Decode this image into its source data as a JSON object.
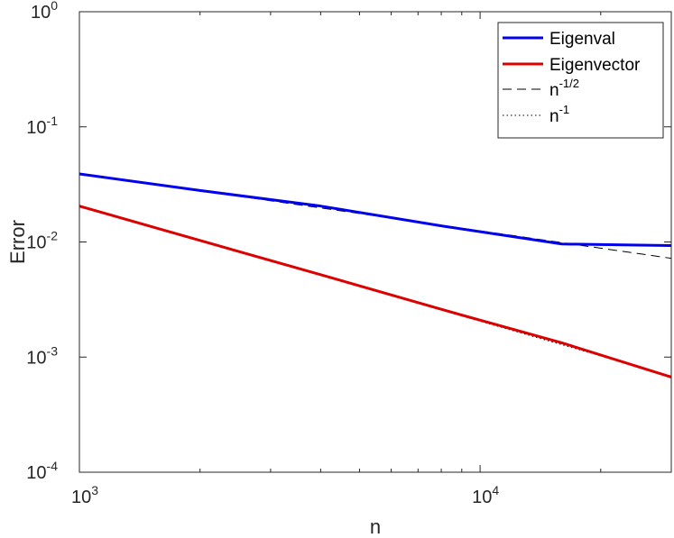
{
  "chart_data": {
    "type": "line",
    "xlabel": "n",
    "ylabel": "Error",
    "xscale": "log",
    "yscale": "log",
    "xlim": [
      1000,
      30000
    ],
    "ylim": [
      0.0001,
      1
    ],
    "x_ticks": [
      {
        "value": 1000,
        "base": "10",
        "exp": "3"
      },
      {
        "value": 10000,
        "base": "10",
        "exp": "4"
      }
    ],
    "y_ticks": [
      {
        "value": 1,
        "base": "10",
        "exp": "0"
      },
      {
        "value": 0.1,
        "base": "10",
        "exp": "-1"
      },
      {
        "value": 0.01,
        "base": "10",
        "exp": "-2"
      },
      {
        "value": 0.001,
        "base": "10",
        "exp": "-3"
      },
      {
        "value": 0.0001,
        "base": "10",
        "exp": "-4"
      }
    ],
    "grid": false,
    "legend_position": "top-right",
    "series": [
      {
        "name": "Eigenval",
        "color": "#0000ee",
        "style": "solid",
        "x": [
          1000,
          2000,
          4000,
          8000,
          16000,
          20000,
          30000
        ],
        "y": [
          0.039,
          0.028,
          0.0205,
          0.0138,
          0.0096,
          0.0095,
          0.0093
        ]
      },
      {
        "name": "Eigenvector",
        "color": "#dd0000",
        "style": "solid",
        "x": [
          1000,
          2000,
          4000,
          8000,
          16000,
          30000
        ],
        "y": [
          0.0205,
          0.0103,
          0.0052,
          0.0026,
          0.00133,
          0.00067
        ]
      },
      {
        "name": "n",
        "name_sup": "-1/2",
        "color": "#000000",
        "style": "dashed",
        "x": [
          1000,
          30000
        ],
        "y": [
          0.0395,
          0.00721
        ]
      },
      {
        "name": "n",
        "name_sup": "-1",
        "color": "#000000",
        "style": "dotted",
        "x": [
          1000,
          30000
        ],
        "y": [
          0.0205,
          0.000683
        ]
      }
    ]
  }
}
